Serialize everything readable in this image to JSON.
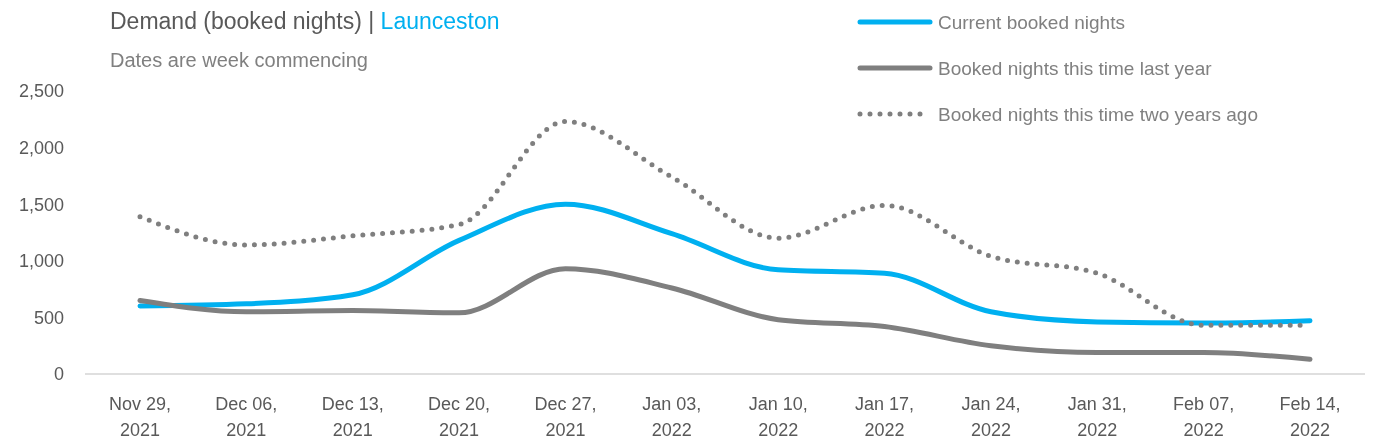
{
  "chart_data": {
    "type": "line",
    "title": "Demand (booked nights) | Launceston",
    "subtitle": "Dates are week commencing",
    "categories": [
      "Nov 29, 2021",
      "Dec 06, 2021",
      "Dec 13, 2021",
      "Dec 20, 2021",
      "Dec 27, 2021",
      "Jan 03, 2022",
      "Jan 10, 2022",
      "Jan 17, 2022",
      "Jan 24, 2022",
      "Jan 31, 2022",
      "Feb 07, 2022",
      "Feb 14, 2022"
    ],
    "ylim": [
      0,
      2500
    ],
    "yticks": [
      0,
      {
        "value": 500,
        "label": "500"
      },
      {
        "value": 1000,
        "label": "1,000"
      },
      {
        "value": 1500,
        "label": "1,500"
      },
      {
        "value": 2000,
        "label": "2,000"
      },
      {
        "value": 2500,
        "label": "2,500"
      }
    ],
    "grid": false,
    "legend": "top right",
    "series": [
      {
        "name": "Current booked nights",
        "color": "#00b0f0",
        "line_style": "solid",
        "values": [
          600,
          620,
          700,
          1180,
          1500,
          1240,
          920,
          890,
          550,
          460,
          450,
          470
        ]
      },
      {
        "name": "Booked nights this time last year",
        "color": "#7f7f7f",
        "line_style": "solid",
        "values": [
          650,
          550,
          560,
          540,
          930,
          760,
          480,
          420,
          250,
          190,
          190,
          130
        ]
      },
      {
        "name": "Booked nights this time two years ago",
        "color": "#7f7f7f",
        "line_style": "dotted",
        "values": [
          1390,
          1140,
          1220,
          1320,
          2230,
          1740,
          1200,
          1490,
          1040,
          890,
          430,
          430
        ]
      }
    ]
  }
}
